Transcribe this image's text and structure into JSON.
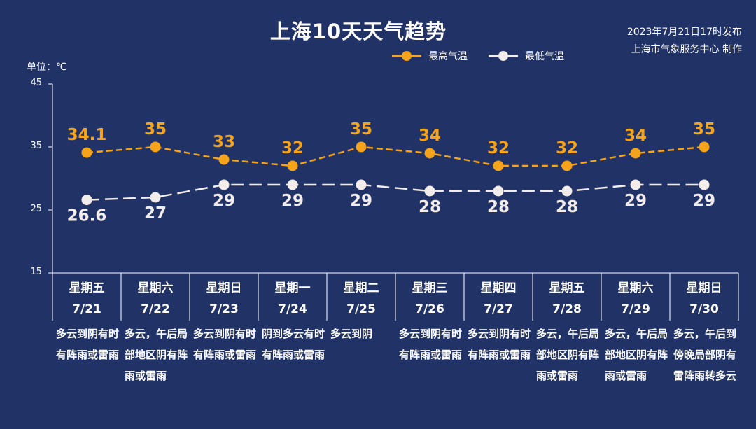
{
  "header": {
    "title": "上海10天天气趋势",
    "publish_time": "2023年7月21日17时发布",
    "publisher": "上海市气象服务中心 制作",
    "unit_label": "单位：℃"
  },
  "legend": {
    "high_label": "最高气温",
    "low_label": "最低气温"
  },
  "colors": {
    "background": "#213266",
    "high": "#F5A31A",
    "low": "#F2EDEA",
    "axis": "#FFFFFF"
  },
  "chart_data": {
    "type": "line",
    "title": "上海10天天气趋势",
    "ylabel": "单位：℃",
    "ylim": [
      15,
      45
    ],
    "yticks": [
      "15",
      "25",
      "35",
      "45"
    ],
    "categories": [
      "7/21",
      "7/22",
      "7/23",
      "7/24",
      "7/25",
      "7/26",
      "7/27",
      "7/28",
      "7/29",
      "7/30"
    ],
    "weekdays": [
      "星期五",
      "星期六",
      "星期日",
      "星期一",
      "星期二",
      "星期三",
      "星期四",
      "星期五",
      "星期六",
      "星期日"
    ],
    "descriptions": [
      "多云到阴有时有阵雨或雷雨",
      "多云，午后局部地区阴有阵雨或雷雨",
      "多云到阴有时有阵雨或雷雨",
      "阴到多云有时有阵雨或雷雨",
      "多云到阴",
      "多云到阴有时有阵雨或雷雨",
      "多云到阴有时有阵雨或雷雨",
      "多云，午后局部地区阴有阵雨或雷雨",
      "多云，午后局部地区阴有阵雨或雷雨",
      "多云，午后到傍晚局部阴有雷阵雨转多云"
    ],
    "series": [
      {
        "name": "最高气温",
        "values": [
          34.1,
          35,
          33,
          32,
          35,
          34,
          32,
          32,
          34,
          35
        ],
        "labels": [
          "34.1",
          "35",
          "33",
          "32",
          "35",
          "34",
          "32",
          "32",
          "34",
          "35"
        ]
      },
      {
        "name": "最低气温",
        "values": [
          26.6,
          27,
          29,
          29,
          29,
          28,
          28,
          28,
          29,
          29
        ],
        "labels": [
          "26.6",
          "27",
          "29",
          "29",
          "29",
          "28",
          "28",
          "28",
          "29",
          "29"
        ]
      }
    ],
    "legend_position": "top"
  }
}
